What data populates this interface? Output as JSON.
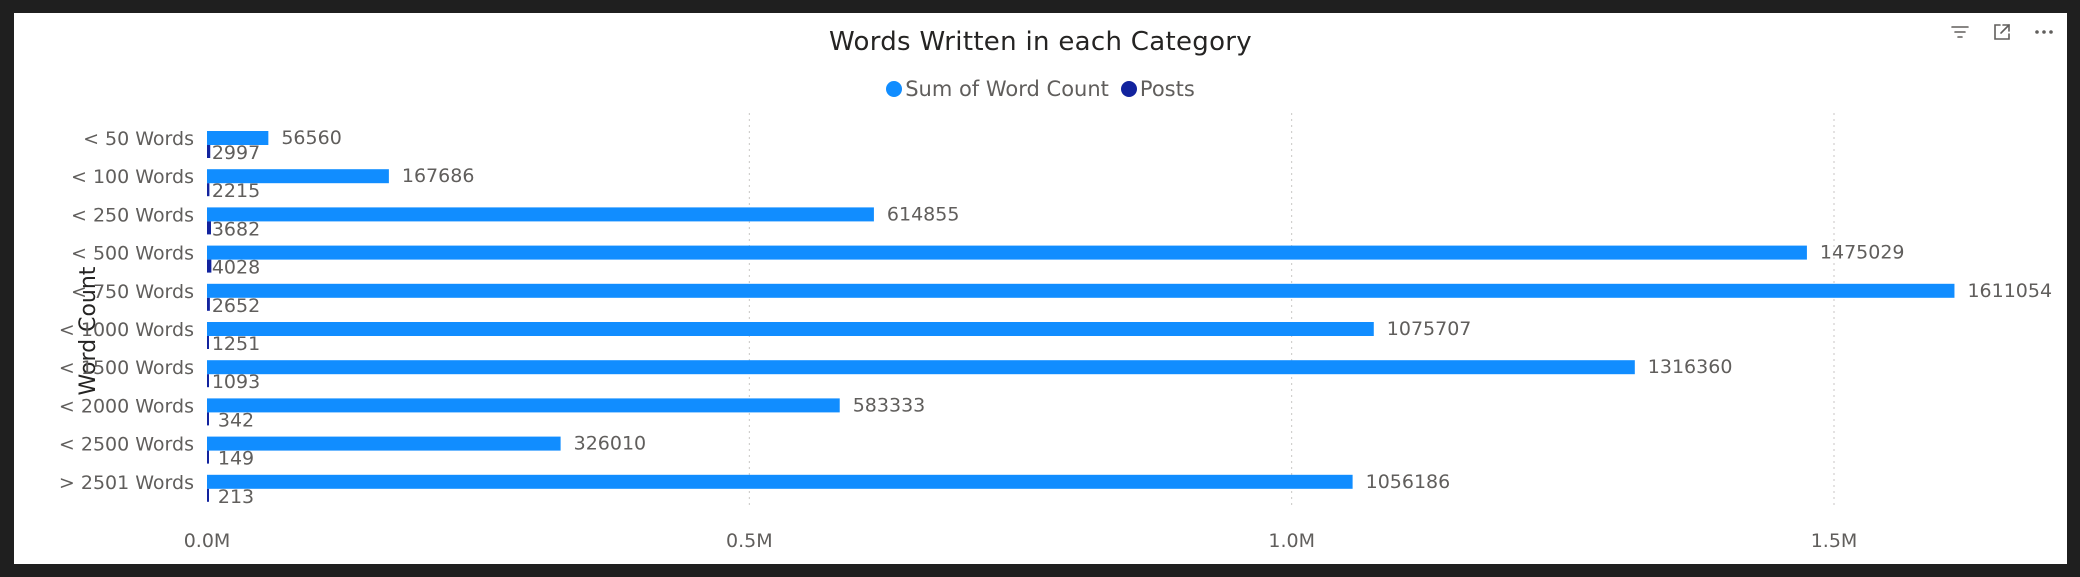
{
  "header": {
    "icons": [
      "filter-icon",
      "focus-mode-icon",
      "more-options-icon"
    ]
  },
  "chart_data": {
    "type": "bar",
    "orientation": "horizontal",
    "title": "Words Written in each Category",
    "ylabel": "Word Count",
    "xlabel": "",
    "categories": [
      "< 50 Words",
      "< 100 Words",
      "< 250 Words",
      "< 500 Words",
      "< 750 Words",
      "< 1000 Words",
      "< 1500 Words",
      "< 2000 Words",
      "< 2500 Words",
      "> 2501 Words"
    ],
    "series": [
      {
        "name": "Sum of Word Count",
        "color": "#118dff",
        "values": [
          56560,
          167686,
          614855,
          1475029,
          1611054,
          1075707,
          1316360,
          583333,
          326010,
          1056186
        ]
      },
      {
        "name": "Posts",
        "color": "#12239e",
        "values": [
          2997,
          2215,
          3682,
          4028,
          2652,
          1251,
          1093,
          342,
          149,
          213
        ]
      }
    ],
    "x_ticks": [
      0,
      500000,
      1000000,
      1500000
    ],
    "x_tick_labels": [
      "0.0M",
      "0.5M",
      "1.0M",
      "1.5M"
    ],
    "xlim": [
      0,
      1700000
    ],
    "grid": "vertical-dotted",
    "legend_position": "top-center",
    "data_labels": true
  }
}
